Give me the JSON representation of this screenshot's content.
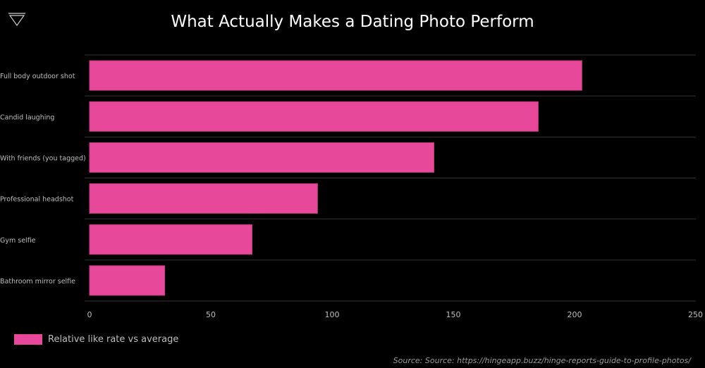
{
  "title": "What Actually Makes a Dating Photo Perform",
  "logo_icon": "triangle-logo-icon",
  "source": "Source: Source: https://hingeapp.buzz/hinge-reports-guide-to-profile-photos/",
  "colors": {
    "bar": "#E8489A",
    "bar_border": "#c23a80",
    "grid": "#333333",
    "tick_text": "#bdbdbd"
  },
  "chart_data": {
    "type": "bar",
    "orientation": "horizontal",
    "title": "What Actually Makes a Dating Photo Perform",
    "categories": [
      "Full body outdoor shot",
      "Candid laughing",
      "With friends (you tagged)",
      "Professional headshot",
      "Gym selfie",
      "Bathroom mirror selfie"
    ],
    "series": [
      {
        "name": "Relative like rate vs average",
        "values": [
          203,
          185,
          142,
          94,
          67,
          31
        ]
      }
    ],
    "xlim": [
      0,
      250
    ],
    "xticks": [
      0,
      50,
      100,
      150,
      200,
      250
    ],
    "xlabel": "",
    "ylabel": "",
    "grid": "horizontal-separators",
    "legend": "bottom-left"
  }
}
